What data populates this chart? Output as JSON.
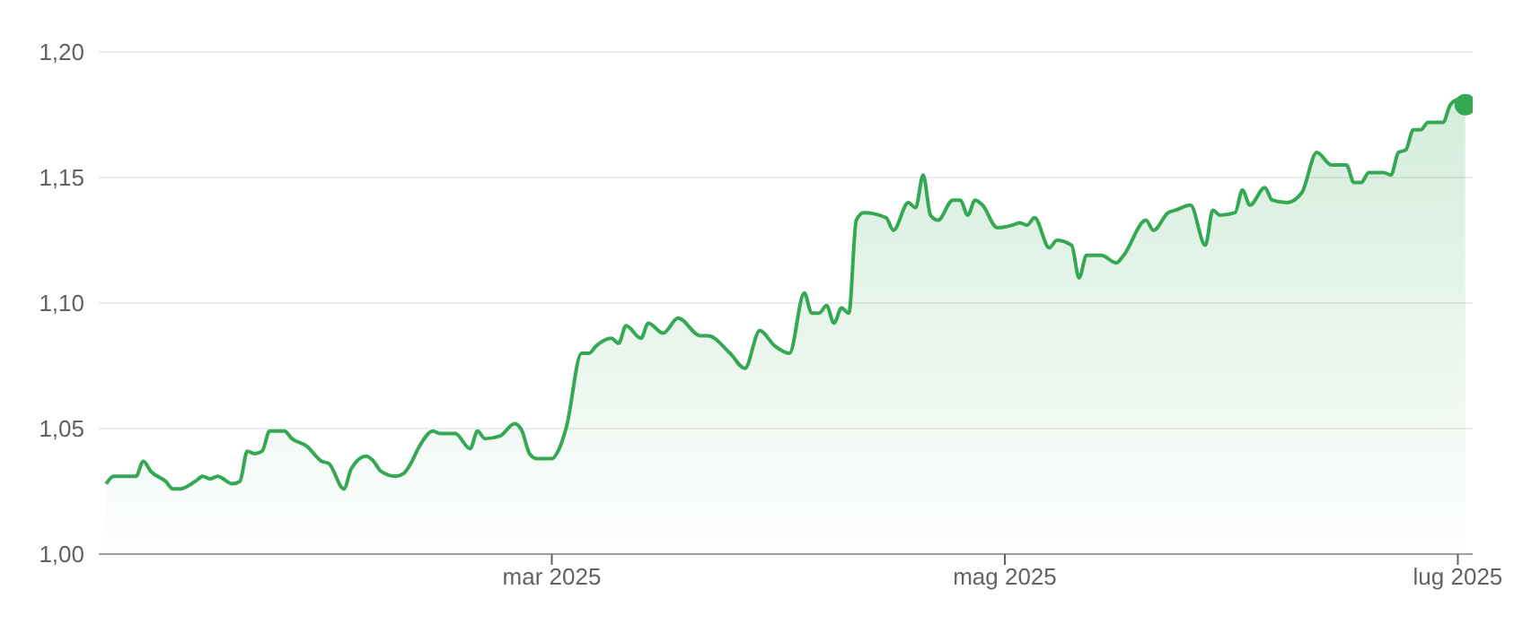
{
  "chart_data": {
    "type": "area",
    "grid": "y",
    "xlim": [
      "2024-12-30",
      "2025-07-03"
    ],
    "xticks": [
      {
        "value": "2025-03-01",
        "label": "mar 2025"
      },
      {
        "value": "2025-05-01",
        "label": "mag 2025"
      },
      {
        "value": "2025-07-01",
        "label": "lug 2025"
      }
    ],
    "ylim": [
      1.0,
      1.2
    ],
    "yticks": [
      {
        "value": 1.0,
        "label": "1,00"
      },
      {
        "value": 1.05,
        "label": "1,05"
      },
      {
        "value": 1.1,
        "label": "1,10"
      },
      {
        "value": 1.15,
        "label": "1,15"
      },
      {
        "value": 1.2,
        "label": "1,20"
      }
    ],
    "series": [
      {
        "color": "#34a853",
        "marker": "none",
        "x": [
          "2024-12-31",
          "2025-01-01",
          "2025-01-04",
          "2025-01-05",
          "2025-01-06",
          "2025-01-08",
          "2025-01-09",
          "2025-01-10",
          "2025-01-12",
          "2025-01-13",
          "2025-01-14",
          "2025-01-15",
          "2025-01-17",
          "2025-01-18",
          "2025-01-19",
          "2025-01-20",
          "2025-01-21",
          "2025-01-22",
          "2025-01-24",
          "2025-01-25",
          "2025-01-27",
          "2025-01-29",
          "2025-01-30",
          "2025-02-01",
          "2025-02-02",
          "2025-02-04",
          "2025-02-05",
          "2025-02-06",
          "2025-02-08",
          "2025-02-09",
          "2025-02-10",
          "2025-02-11",
          "2025-02-13",
          "2025-02-14",
          "2025-02-16",
          "2025-02-18",
          "2025-02-19",
          "2025-02-20",
          "2025-02-22",
          "2025-02-24",
          "2025-02-25",
          "2025-02-26",
          "2025-02-27",
          "2025-03-01",
          "2025-03-02",
          "2025-03-03",
          "2025-03-05",
          "2025-03-06",
          "2025-03-07",
          "2025-03-09",
          "2025-03-10",
          "2025-03-11",
          "2025-03-13",
          "2025-03-14",
          "2025-03-16",
          "2025-03-18",
          "2025-03-21",
          "2025-03-22",
          "2025-03-25",
          "2025-03-27",
          "2025-03-29",
          "2025-03-31",
          "2025-04-02",
          "2025-04-04",
          "2025-04-05",
          "2025-04-06",
          "2025-04-07",
          "2025-04-08",
          "2025-04-09",
          "2025-04-10",
          "2025-04-11",
          "2025-04-12",
          "2025-04-15",
          "2025-04-16",
          "2025-04-18",
          "2025-04-19",
          "2025-04-20",
          "2025-04-21",
          "2025-04-22",
          "2025-04-24",
          "2025-04-25",
          "2025-04-26",
          "2025-04-27",
          "2025-04-28",
          "2025-04-30",
          "2025-05-02",
          "2025-05-03",
          "2025-05-04",
          "2025-05-05",
          "2025-05-07",
          "2025-05-08",
          "2025-05-10",
          "2025-05-11",
          "2025-05-12",
          "2025-05-14",
          "2025-05-16",
          "2025-05-17",
          "2025-05-20",
          "2025-05-21",
          "2025-05-23",
          "2025-05-24",
          "2025-05-26",
          "2025-05-28",
          "2025-05-29",
          "2025-05-30",
          "2025-06-01",
          "2025-06-02",
          "2025-06-03",
          "2025-06-05",
          "2025-06-06",
          "2025-06-08",
          "2025-06-10",
          "2025-06-12",
          "2025-06-14",
          "2025-06-16",
          "2025-06-17",
          "2025-06-18",
          "2025-06-19",
          "2025-06-21",
          "2025-06-22",
          "2025-06-23",
          "2025-06-24",
          "2025-06-25",
          "2025-06-26",
          "2025-06-27",
          "2025-06-29",
          "2025-06-30",
          "2025-07-01",
          "2025-07-02"
        ],
        "values": [
          1.028,
          1.031,
          1.031,
          1.037,
          1.033,
          1.029,
          1.026,
          1.026,
          1.029,
          1.031,
          1.03,
          1.031,
          1.028,
          1.029,
          1.041,
          1.04,
          1.041,
          1.049,
          1.049,
          1.046,
          1.043,
          1.037,
          1.036,
          1.026,
          1.034,
          1.039,
          1.037,
          1.033,
          1.031,
          1.032,
          1.036,
          1.042,
          1.049,
          1.048,
          1.048,
          1.042,
          1.049,
          1.046,
          1.047,
          1.052,
          1.049,
          1.04,
          1.038,
          1.038,
          1.042,
          1.051,
          1.08,
          1.08,
          1.083,
          1.086,
          1.084,
          1.091,
          1.086,
          1.092,
          1.088,
          1.094,
          1.087,
          1.087,
          1.08,
          1.074,
          1.089,
          1.083,
          1.08,
          1.104,
          1.096,
          1.096,
          1.099,
          1.092,
          1.098,
          1.096,
          1.133,
          1.136,
          1.134,
          1.129,
          1.14,
          1.138,
          1.151,
          1.135,
          1.133,
          1.141,
          1.141,
          1.135,
          1.141,
          1.139,
          1.13,
          1.131,
          1.132,
          1.131,
          1.134,
          1.122,
          1.125,
          1.123,
          1.11,
          1.119,
          1.119,
          1.116,
          1.119,
          1.133,
          1.129,
          1.136,
          1.137,
          1.139,
          1.123,
          1.137,
          1.135,
          1.136,
          1.145,
          1.139,
          1.146,
          1.141,
          1.14,
          1.144,
          1.16,
          1.155,
          1.155,
          1.148,
          1.148,
          1.152,
          1.152,
          1.151,
          1.16,
          1.161,
          1.169,
          1.169,
          1.172,
          1.172,
          1.179,
          1.181,
          1.179
        ]
      },
      {
        "type": "scatter",
        "color": "#34a853",
        "marker": "circle",
        "x": [
          "2025-07-02"
        ],
        "values": [
          1.179
        ]
      }
    ]
  }
}
